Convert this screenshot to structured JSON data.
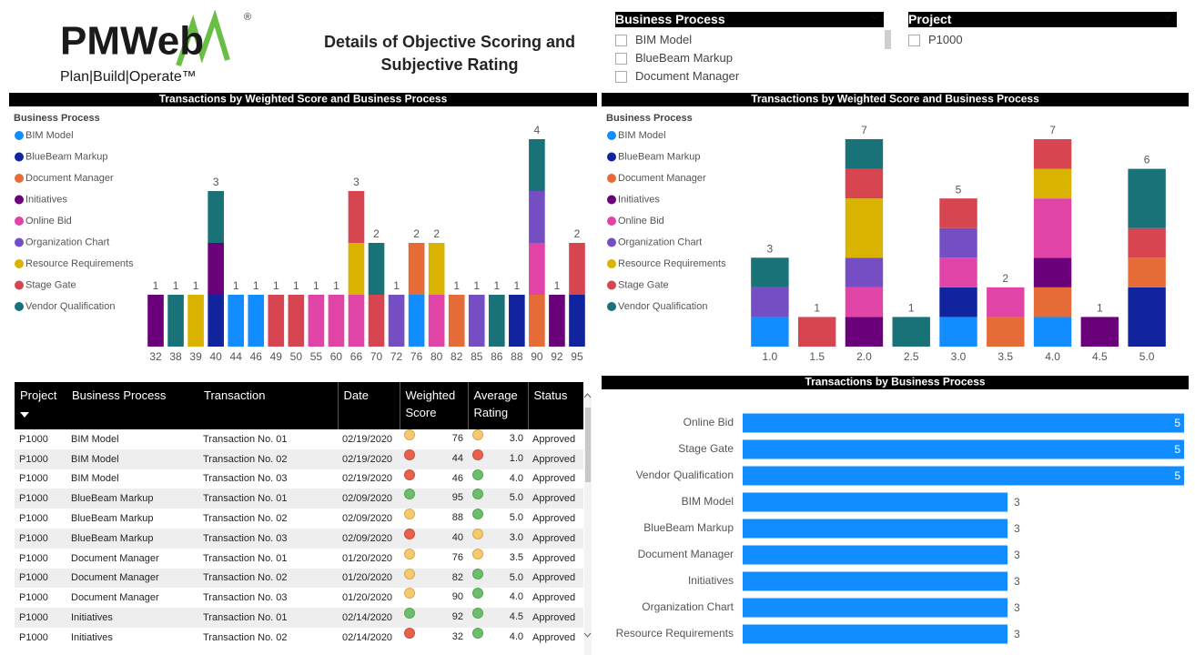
{
  "header": {
    "logo_text": "PMWeb",
    "logo_mark": "®",
    "tagline": "Plan|Build|Operate™",
    "title": "Details of Objective Scoring and Subjective Rating"
  },
  "slicers": [
    {
      "title": "Business Process",
      "items": [
        "BIM Model",
        "BlueBeam Markup",
        "Document Manager"
      ]
    },
    {
      "title": "Project",
      "items": [
        "P1000"
      ]
    }
  ],
  "chart_data": [
    {
      "type": "bar",
      "stacked": true,
      "title": "Transactions by Weighted Score and Business Process",
      "legend_title": "Business Process",
      "legend": "left",
      "categories": [
        "32",
        "38",
        "39",
        "40",
        "44",
        "46",
        "49",
        "50",
        "55",
        "60",
        "66",
        "70",
        "72",
        "76",
        "80",
        "82",
        "85",
        "86",
        "88",
        "90",
        "92",
        "95"
      ],
      "ylim": [
        0,
        4
      ],
      "totals": [
        1,
        1,
        1,
        3,
        1,
        1,
        1,
        1,
        1,
        1,
        3,
        2,
        1,
        2,
        2,
        1,
        1,
        1,
        1,
        4,
        1,
        2
      ],
      "series": [
        {
          "name": "BIM Model",
          "color": "#118DFF",
          "values": [
            0,
            0,
            0,
            0,
            1,
            1,
            0,
            0,
            0,
            0,
            0,
            0,
            0,
            1,
            0,
            0,
            0,
            0,
            0,
            0,
            0,
            0
          ]
        },
        {
          "name": "BlueBeam Markup",
          "color": "#12239E",
          "values": [
            0,
            0,
            0,
            1,
            0,
            0,
            0,
            0,
            0,
            0,
            0,
            0,
            0,
            0,
            0,
            0,
            0,
            0,
            1,
            0,
            0,
            1
          ]
        },
        {
          "name": "Document Manager",
          "color": "#E66C37",
          "values": [
            0,
            0,
            0,
            0,
            0,
            0,
            0,
            0,
            0,
            0,
            0,
            0,
            0,
            1,
            0,
            1,
            0,
            0,
            0,
            1,
            0,
            0
          ]
        },
        {
          "name": "Initiatives",
          "color": "#6B007B",
          "values": [
            1,
            0,
            0,
            1,
            0,
            0,
            0,
            0,
            0,
            0,
            0,
            0,
            0,
            0,
            0,
            0,
            0,
            0,
            0,
            0,
            1,
            0
          ]
        },
        {
          "name": "Online Bid",
          "color": "#E044A7",
          "values": [
            0,
            0,
            0,
            0,
            0,
            0,
            0,
            0,
            1,
            1,
            1,
            0,
            0,
            0,
            1,
            0,
            0,
            0,
            0,
            1,
            0,
            0
          ]
        },
        {
          "name": "Organization Chart",
          "color": "#744EC2",
          "values": [
            0,
            0,
            0,
            0,
            0,
            0,
            0,
            0,
            0,
            0,
            0,
            0,
            1,
            0,
            0,
            0,
            1,
            0,
            0,
            1,
            0,
            0
          ]
        },
        {
          "name": "Resource Requirements",
          "color": "#D9B300",
          "values": [
            0,
            0,
            1,
            0,
            0,
            0,
            0,
            0,
            0,
            0,
            1,
            0,
            0,
            0,
            1,
            0,
            0,
            0,
            0,
            0,
            0,
            0
          ]
        },
        {
          "name": "Stage Gate",
          "color": "#D64550",
          "values": [
            0,
            0,
            0,
            0,
            0,
            0,
            1,
            1,
            0,
            0,
            1,
            1,
            0,
            0,
            0,
            0,
            0,
            0,
            0,
            0,
            0,
            1
          ]
        },
        {
          "name": "Vendor Qualification",
          "color": "#197278",
          "values": [
            0,
            1,
            0,
            1,
            0,
            0,
            0,
            0,
            0,
            0,
            0,
            1,
            0,
            0,
            0,
            0,
            0,
            1,
            0,
            1,
            0,
            0
          ]
        }
      ]
    },
    {
      "type": "bar",
      "stacked": true,
      "title": "Transactions by Weighted Score and Business Process",
      "legend_title": "Business Process",
      "legend": "left",
      "categories": [
        "1.0",
        "1.5",
        "2.0",
        "2.5",
        "3.0",
        "3.5",
        "4.0",
        "4.5",
        "5.0"
      ],
      "ylim": [
        0,
        7
      ],
      "totals": [
        3,
        1,
        7,
        1,
        5,
        2,
        7,
        1,
        6
      ],
      "series": [
        {
          "name": "BIM Model",
          "color": "#118DFF",
          "values": [
            1,
            0,
            0,
            0,
            1,
            0,
            1,
            0,
            0
          ]
        },
        {
          "name": "BlueBeam Markup",
          "color": "#12239E",
          "values": [
            0,
            0,
            0,
            0,
            1,
            0,
            0,
            0,
            2
          ]
        },
        {
          "name": "Document Manager",
          "color": "#E66C37",
          "values": [
            0,
            0,
            0,
            0,
            0,
            1,
            1,
            0,
            1
          ]
        },
        {
          "name": "Initiatives",
          "color": "#6B007B",
          "values": [
            0,
            0,
            1,
            0,
            0,
            0,
            1,
            1,
            0
          ]
        },
        {
          "name": "Online Bid",
          "color": "#E044A7",
          "values": [
            0,
            0,
            1,
            0,
            1,
            1,
            2,
            0,
            0
          ]
        },
        {
          "name": "Organization Chart",
          "color": "#744EC2",
          "values": [
            1,
            0,
            1,
            0,
            1,
            0,
            0,
            0,
            0
          ]
        },
        {
          "name": "Resource Requirements",
          "color": "#D9B300",
          "values": [
            0,
            0,
            2,
            0,
            0,
            0,
            1,
            0,
            0
          ]
        },
        {
          "name": "Stage Gate",
          "color": "#D64550",
          "values": [
            0,
            1,
            1,
            0,
            1,
            0,
            1,
            0,
            1
          ]
        },
        {
          "name": "Vendor Qualification",
          "color": "#197278",
          "values": [
            1,
            0,
            1,
            1,
            0,
            0,
            0,
            0,
            2
          ]
        }
      ]
    },
    {
      "type": "hbar",
      "title": "Transactions by Business Process",
      "color": "#118DFF",
      "categories": [
        "Online Bid",
        "Stage Gate",
        "Vendor Qualification",
        "BIM Model",
        "BlueBeam Markup",
        "Document Manager",
        "Initiatives",
        "Organization Chart",
        "Resource Requirements"
      ],
      "values": [
        5,
        5,
        5,
        3,
        3,
        3,
        3,
        3,
        3
      ],
      "xlim": [
        0,
        5
      ]
    }
  ],
  "table": {
    "columns": [
      "Project",
      "Business Process",
      "Transaction",
      "Date",
      "Weighted Score",
      "Average Rating",
      "Status"
    ],
    "rows": [
      [
        "P1000",
        "BIM Model",
        "Transaction No. 01",
        "02/19/2020",
        "76",
        "3.0",
        "Approved"
      ],
      [
        "P1000",
        "BIM Model",
        "Transaction No. 02",
        "02/19/2020",
        "44",
        "1.0",
        "Approved"
      ],
      [
        "P1000",
        "BIM Model",
        "Transaction No. 03",
        "02/19/2020",
        "46",
        "4.0",
        "Approved"
      ],
      [
        "P1000",
        "BlueBeam Markup",
        "Transaction No. 01",
        "02/09/2020",
        "95",
        "5.0",
        "Approved"
      ],
      [
        "P1000",
        "BlueBeam Markup",
        "Transaction No. 02",
        "02/09/2020",
        "88",
        "5.0",
        "Approved"
      ],
      [
        "P1000",
        "BlueBeam Markup",
        "Transaction No. 03",
        "02/09/2020",
        "40",
        "3.0",
        "Approved"
      ],
      [
        "P1000",
        "Document Manager",
        "Transaction No. 01",
        "01/20/2020",
        "76",
        "3.5",
        "Approved"
      ],
      [
        "P1000",
        "Document Manager",
        "Transaction No. 02",
        "01/20/2020",
        "82",
        "5.0",
        "Approved"
      ],
      [
        "P1000",
        "Document Manager",
        "Transaction No. 03",
        "01/20/2020",
        "90",
        "4.0",
        "Approved"
      ],
      [
        "P1000",
        "Initiatives",
        "Transaction No. 01",
        "02/14/2020",
        "92",
        "4.5",
        "Approved"
      ],
      [
        "P1000",
        "Initiatives",
        "Transaction No. 02",
        "02/14/2020",
        "32",
        "4.0",
        "Approved"
      ]
    ],
    "score_indicators": [
      "#F7C96A",
      "#E8604C",
      "#E8604C",
      "#6BBF6B",
      "#F7C96A",
      "#E8604C",
      "#F7C96A",
      "#F7C96A",
      "#F7C96A",
      "#6BBF6B",
      "#E8604C"
    ],
    "rating_indicators": [
      "#F7C96A",
      "#E8604C",
      "#6BBF6B",
      "#6BBF6B",
      "#6BBF6B",
      "#F7C96A",
      "#F7C96A",
      "#6BBF6B",
      "#6BBF6B",
      "#6BBF6B",
      "#6BBF6B"
    ]
  }
}
